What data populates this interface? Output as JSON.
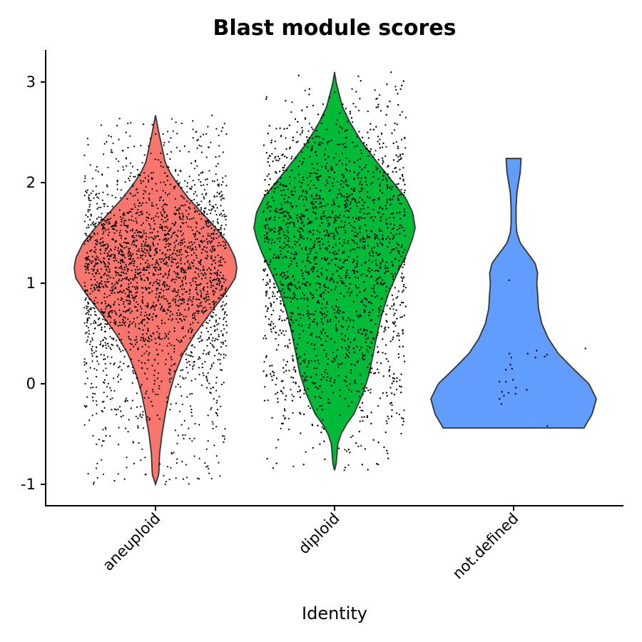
{
  "chart_data": {
    "type": "violin",
    "title": "Blast module scores",
    "xlabel": "Identity",
    "ylabel": "",
    "ylim": [
      -1.2,
      3.3
    ],
    "yticks": [
      -1,
      0,
      1,
      2,
      3
    ],
    "ytick_labels": [
      "-1",
      "0",
      "1",
      "2",
      "3"
    ],
    "grid": false,
    "legend": "none",
    "categories": [
      "aneuploid",
      "diploid",
      "not.defined"
    ],
    "series": [
      {
        "category": "aneuploid",
        "color": "#F8766D",
        "min": -1.0,
        "max": 2.67,
        "mode": 1.15,
        "profile": [
          [
            -1.0,
            0.0
          ],
          [
            -0.9,
            0.04
          ],
          [
            -0.7,
            0.05
          ],
          [
            -0.5,
            0.08
          ],
          [
            -0.3,
            0.12
          ],
          [
            -0.1,
            0.17
          ],
          [
            0.1,
            0.24
          ],
          [
            0.3,
            0.34
          ],
          [
            0.5,
            0.49
          ],
          [
            0.7,
            0.67
          ],
          [
            0.9,
            0.86
          ],
          [
            1.05,
            0.98
          ],
          [
            1.15,
            1.0
          ],
          [
            1.25,
            0.98
          ],
          [
            1.4,
            0.89
          ],
          [
            1.55,
            0.74
          ],
          [
            1.7,
            0.57
          ],
          [
            1.85,
            0.4
          ],
          [
            2.0,
            0.26
          ],
          [
            2.1,
            0.18
          ],
          [
            2.2,
            0.12
          ],
          [
            2.35,
            0.08
          ],
          [
            2.5,
            0.04
          ],
          [
            2.67,
            0.0
          ]
        ]
      },
      {
        "category": "diploid",
        "color": "#00BA38",
        "min": -0.86,
        "max": 3.1,
        "mode": 1.55,
        "profile": [
          [
            -0.86,
            0.0
          ],
          [
            -0.8,
            0.02
          ],
          [
            -0.6,
            0.04
          ],
          [
            -0.5,
            0.08
          ],
          [
            -0.4,
            0.15
          ],
          [
            -0.3,
            0.24
          ],
          [
            -0.1,
            0.35
          ],
          [
            0.1,
            0.43
          ],
          [
            0.3,
            0.48
          ],
          [
            0.5,
            0.53
          ],
          [
            0.7,
            0.59
          ],
          [
            0.9,
            0.67
          ],
          [
            1.1,
            0.78
          ],
          [
            1.3,
            0.9
          ],
          [
            1.45,
            0.97
          ],
          [
            1.55,
            1.0
          ],
          [
            1.7,
            0.97
          ],
          [
            1.85,
            0.88
          ],
          [
            2.0,
            0.73
          ],
          [
            2.2,
            0.53
          ],
          [
            2.4,
            0.34
          ],
          [
            2.6,
            0.19
          ],
          [
            2.75,
            0.1
          ],
          [
            2.9,
            0.05
          ],
          [
            3.0,
            0.02
          ],
          [
            3.1,
            0.0
          ]
        ]
      },
      {
        "category": "not.defined",
        "color": "#619CFF",
        "min": -0.44,
        "max": 2.24,
        "mode": -0.15,
        "profile": [
          [
            -0.44,
            0.85
          ],
          [
            -0.3,
            0.95
          ],
          [
            -0.15,
            1.0
          ],
          [
            0.0,
            0.91
          ],
          [
            0.15,
            0.72
          ],
          [
            0.3,
            0.54
          ],
          [
            0.45,
            0.42
          ],
          [
            0.6,
            0.34
          ],
          [
            0.75,
            0.3
          ],
          [
            0.9,
            0.29
          ],
          [
            1.0,
            0.28
          ],
          [
            1.1,
            0.29
          ],
          [
            1.2,
            0.26
          ],
          [
            1.3,
            0.17
          ],
          [
            1.4,
            0.08
          ],
          [
            1.5,
            0.04
          ],
          [
            1.6,
            0.03
          ],
          [
            1.75,
            0.03
          ],
          [
            1.9,
            0.04
          ],
          [
            2.0,
            0.06
          ],
          [
            2.1,
            0.08
          ],
          [
            2.24,
            0.09
          ]
        ]
      }
    ],
    "jitter_points_note_free": true,
    "not_defined_points": [
      [
        -0.14,
        1.03
      ],
      [
        0.06,
        -0.1
      ],
      [
        0.07,
        -0.04
      ],
      [
        -0.16,
        -0.09
      ],
      [
        0.41,
        -0.06
      ],
      [
        0.68,
        0.26
      ],
      [
        0.97,
        0.27
      ],
      [
        1.04,
        0.29
      ],
      [
        0.72,
        0.33
      ],
      [
        0.44,
        0.3
      ],
      [
        -0.02,
        0.04
      ],
      [
        -0.05,
        0.15
      ],
      [
        -0.1,
        0.19
      ],
      [
        -0.24,
        0.02
      ],
      [
        -0.3,
        -0.12
      ],
      [
        -0.36,
        -0.08
      ],
      [
        -0.44,
        0.02
      ],
      [
        -0.44,
        -0.15
      ],
      [
        -0.38,
        -0.2
      ],
      [
        -0.24,
        0.14
      ],
      [
        2.24,
        0.35
      ],
      [
        1.05,
        -0.42
      ],
      [
        -0.13,
        0.3
      ],
      [
        -0.07,
        0.26
      ]
    ]
  }
}
